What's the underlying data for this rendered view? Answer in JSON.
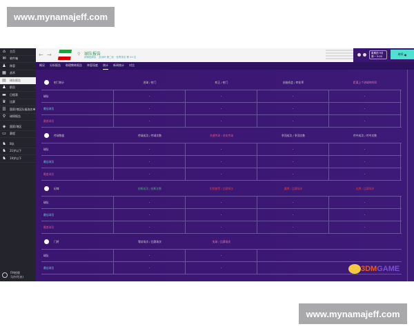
{
  "watermark": "www.mynamajeff.com",
  "logo": "3DMGAME",
  "sidebar": {
    "items": [
      {
        "label": "主页",
        "icon": "home-icon"
      },
      {
        "label": "收件箱",
        "icon": "inbox-icon"
      },
      {
        "label": "阵容",
        "icon": "squad-icon"
      },
      {
        "label": "战术",
        "icon": "tactics-icon"
      },
      {
        "label": "球队报告",
        "icon": "report-icon",
        "selected": true
      },
      {
        "label": "职员",
        "icon": "staff-icon"
      },
      {
        "label": "日程表",
        "icon": "calendar-icon"
      },
      {
        "label": "比赛",
        "icon": "trophy-icon"
      },
      {
        "label": "国家/地区队候选名单",
        "icon": "list-icon"
      },
      {
        "label": "球探报告",
        "icon": "search-icon"
      },
      {
        "label": "国家/地区",
        "icon": "shield-icon"
      },
      {
        "label": "赛程",
        "icon": "briefcase-icon"
      },
      {
        "label": "B队",
        "icon": "team-icon"
      },
      {
        "label": "21岁以下",
        "icon": "team-icon"
      },
      {
        "label": "19岁以下",
        "icon": "team-icon"
      }
    ],
    "user": {
      "line1": "FM经理",
      "line2": "马尔代(夫)"
    }
  },
  "header": {
    "title": "球队报告",
    "subtitle": "伊朗国家队 · 亚洲杯 第二轮 · 世界排名 第 XX 位"
  },
  "topbar": {
    "date_line1": "星期四 9月",
    "date_line2": "周一 9:00",
    "continue": "继续"
  },
  "tabs": [
    {
      "label": "概况"
    },
    {
      "label": "分析报告"
    },
    {
      "label": "助理教练报告"
    },
    {
      "label": "阵容深度"
    },
    {
      "label": "统计",
      "selected": true
    },
    {
      "label": "新闻统计"
    },
    {
      "label": "对比"
    }
  ],
  "colors": {
    "best": "#4fd0d8",
    "worst": "#e0558a",
    "accent": "#4fe0d2",
    "background": "#3b1670"
  },
  "sections": [
    {
      "title": "射门统计",
      "icon": "ball-icon",
      "columns": [
        "进球 / 射门",
        "射正 / 射门",
        "创造机会 / 转化率",
        "距离上个进球的时间"
      ],
      "rows": [
        {
          "label": "球队",
          "values": [
            "-",
            "-",
            "-",
            "-"
          ]
        },
        {
          "label": "最佳球员",
          "values": [
            "-",
            "-",
            "-",
            "-"
          ]
        },
        {
          "label": "最差球员",
          "values": [
            "-",
            "-",
            "-",
            "-"
          ]
        }
      ]
    },
    {
      "title": "传球数据",
      "icon": "pass-icon",
      "columns": [
        "传球成功 / 传球次数",
        "关键传球 / 进攻传球",
        "争顶成功 / 争顶次数",
        "传中成功 / 传中次数"
      ],
      "rows": [
        {
          "label": "球队",
          "values": [
            "-",
            "-",
            "-",
            "-"
          ]
        },
        {
          "label": "最佳球员",
          "values": [
            "-",
            "-",
            "-",
            "-"
          ]
        },
        {
          "label": "最差球员",
          "values": [
            "-",
            "-",
            "-",
            "-"
          ]
        }
      ]
    },
    {
      "title": "纪律",
      "icon": "card-icon",
      "columns": [
        "抢断成功 / 抢断次数",
        "犯规被罚 / 比赛场次",
        "黄牌 / 比赛场次",
        "红牌 / 比赛场次"
      ],
      "rows": [
        {
          "label": "球队",
          "values": [
            "-",
            "-",
            "-",
            "-"
          ]
        },
        {
          "label": "最佳球员",
          "values": [
            "-",
            "-",
            "-",
            "-"
          ]
        },
        {
          "label": "最差球员",
          "values": [
            "-",
            "-",
            "-",
            "-"
          ]
        }
      ]
    },
    {
      "title": "门将",
      "icon": "glove-icon",
      "columns": [
        "零封场次 / 比赛场次",
        "失球 / 比赛场次"
      ],
      "rows": [
        {
          "label": "球队",
          "values": [
            "-",
            "-"
          ]
        },
        {
          "label": "最佳球员",
          "values": [
            "-",
            "-"
          ]
        }
      ]
    }
  ]
}
